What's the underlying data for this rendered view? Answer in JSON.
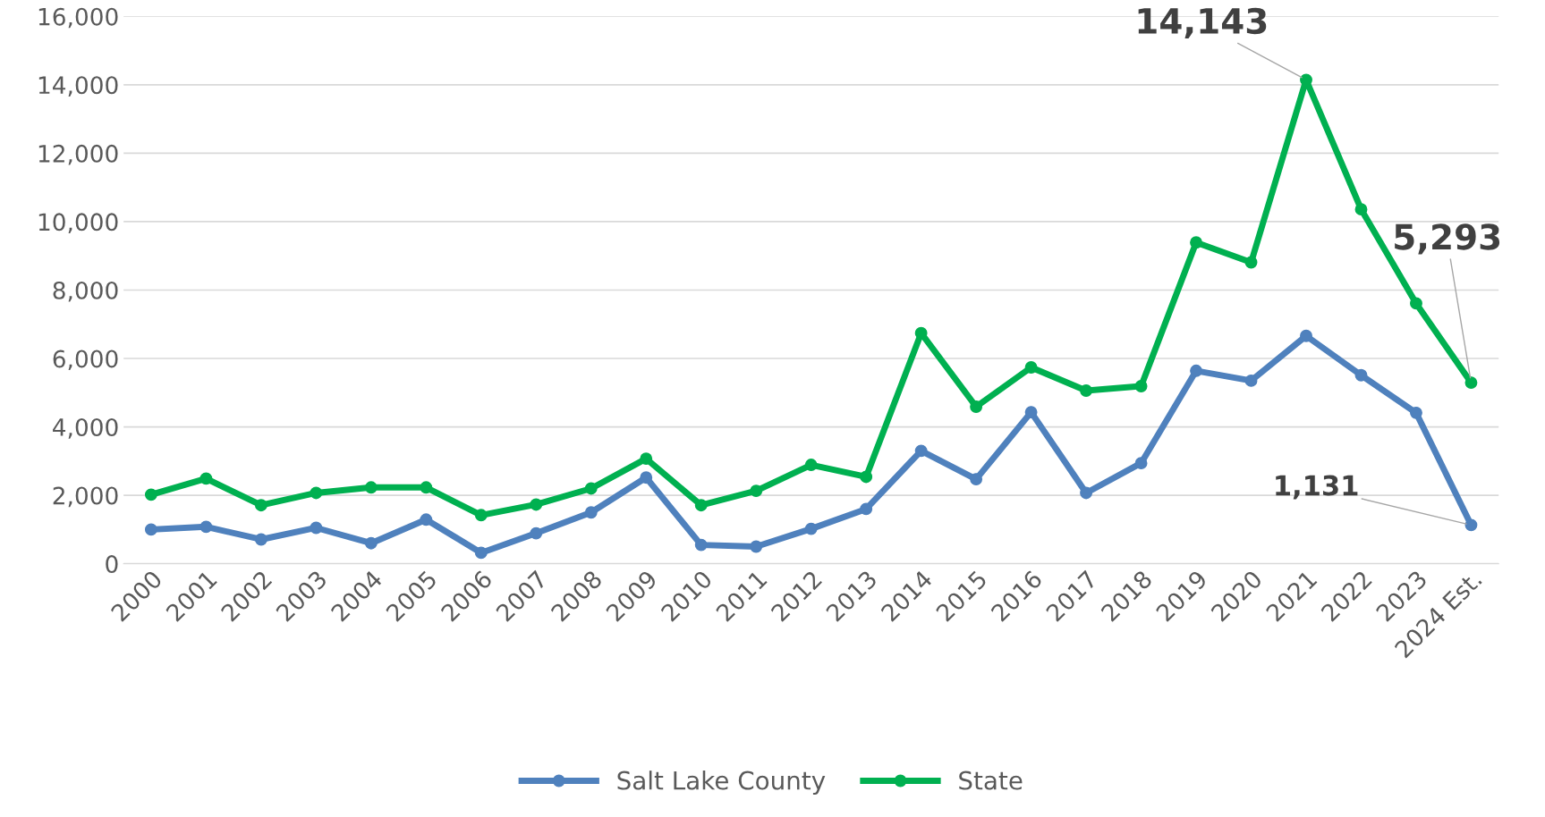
{
  "chart_data": {
    "type": "line",
    "categories": [
      "2000",
      "2001",
      "2002",
      "2003",
      "2004",
      "2005",
      "2006",
      "2007",
      "2008",
      "2009",
      "2010",
      "2011",
      "2012",
      "2013",
      "2014",
      "2015",
      "2016",
      "2017",
      "2018",
      "2019",
      "2020",
      "2021",
      "2022",
      "2023",
      "2024 Est."
    ],
    "series": [
      {
        "name": "Salt Lake County",
        "color": "#4f81bd",
        "values": [
          1000,
          1080,
          710,
          1050,
          600,
          1290,
          320,
          890,
          1500,
          2520,
          550,
          500,
          1020,
          1600,
          3300,
          2470,
          4430,
          2070,
          2940,
          5640,
          5350,
          6660,
          5510,
          4410,
          1131
        ],
        "value_labels": [
          null,
          null,
          null,
          null,
          null,
          null,
          null,
          null,
          null,
          null,
          null,
          null,
          null,
          null,
          null,
          null,
          null,
          null,
          null,
          null,
          null,
          null,
          null,
          null,
          "1,131"
        ]
      },
      {
        "name": "State",
        "color": "#00b050",
        "values": [
          2020,
          2490,
          1710,
          2070,
          2230,
          2230,
          1420,
          1730,
          2200,
          3070,
          1710,
          2130,
          2890,
          2540,
          6740,
          4590,
          5740,
          5060,
          5190,
          9390,
          8810,
          14143,
          10360,
          7610,
          5293
        ],
        "value_labels": [
          null,
          null,
          null,
          null,
          null,
          null,
          null,
          null,
          null,
          null,
          null,
          null,
          null,
          null,
          null,
          null,
          null,
          null,
          null,
          null,
          null,
          "14,143",
          null,
          null,
          "5,293"
        ]
      }
    ],
    "ylim": [
      0,
      16000
    ],
    "yticks": [
      {
        "value": 0,
        "label": "0"
      },
      {
        "value": 2000,
        "label": "2,000"
      },
      {
        "value": 4000,
        "label": "4,000"
      },
      {
        "value": 6000,
        "label": "6,000"
      },
      {
        "value": 8000,
        "label": "8,000"
      },
      {
        "value": 10000,
        "label": "10,000"
      },
      {
        "value": 12000,
        "label": "12,000"
      },
      {
        "value": 14000,
        "label": "14,000"
      },
      {
        "value": 16000,
        "label": "16,000"
      }
    ],
    "grid": "y",
    "legend": "bottom",
    "marker": "circle",
    "line_style": "solid"
  }
}
